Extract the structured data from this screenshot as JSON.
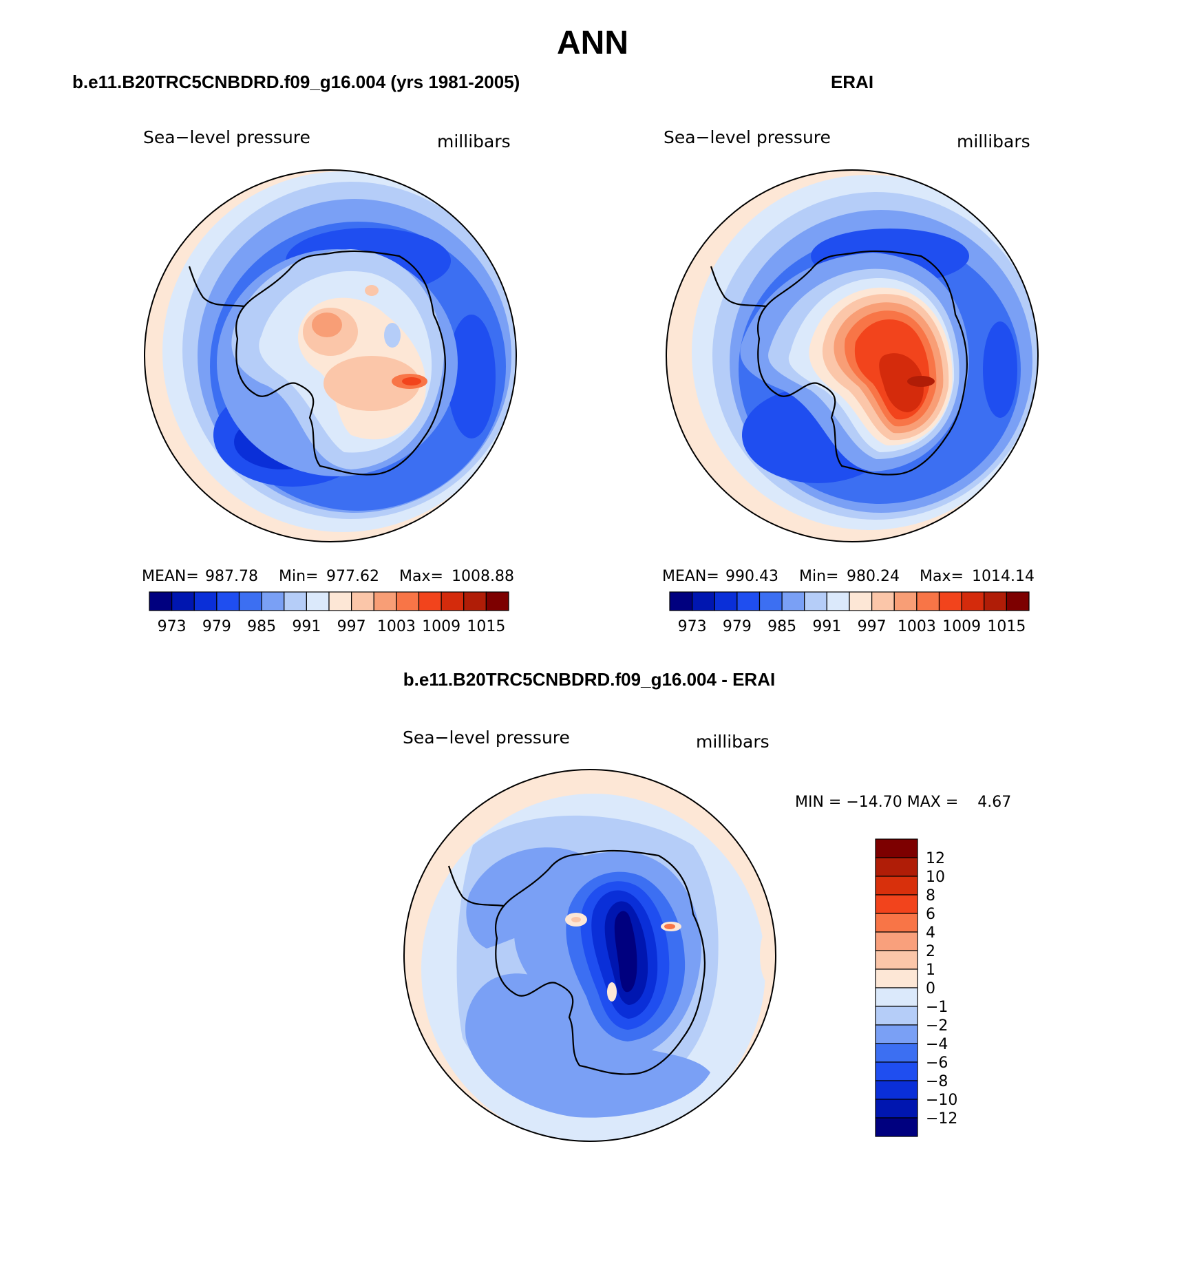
{
  "page_title": "ANN",
  "panels": [
    {
      "title": "b.e11.B20TRC5CNBDRD.f09_g16.004 (yrs 1981-2005)",
      "variable": "Sea−level pressure",
      "units": "millibars",
      "stats": {
        "mean_label": "MEAN=",
        "mean": "987.78",
        "min_label": "Min=",
        "min": "977.62",
        "max_label": "Max=",
        "max": "1008.88"
      }
    },
    {
      "title": "ERAI",
      "variable": "Sea−level pressure",
      "units": "millibars",
      "stats": {
        "mean_label": "MEAN=",
        "mean": "990.43",
        "min_label": "Min=",
        "min": "980.24",
        "max_label": "Max=",
        "max": "1014.14"
      }
    },
    {
      "title": "b.e11.B20TRC5CNBDRD.f09_g16.004 - ERAI",
      "variable": "Sea−level pressure",
      "units": "millibars",
      "minmax_text": "MIN = −14.70 MAX =    4.67"
    }
  ],
  "colorbar_abs": {
    "colors": [
      "#00007f",
      "#0016b0",
      "#0a2fd8",
      "#1f4ef0",
      "#3c6ff2",
      "#7aa0f5",
      "#b5cdf8",
      "#dbe9fb",
      "#fde7d6",
      "#fbc6a9",
      "#f89e76",
      "#f87547",
      "#f2441c",
      "#d42b0c",
      "#b01d07",
      "#7d0000"
    ],
    "tick_labels": [
      "973",
      "979",
      "985",
      "991",
      "997",
      "1003",
      "1009",
      "1015"
    ]
  },
  "colorbar_diff": {
    "colors_top_to_bottom": [
      "#7d0000",
      "#b01d07",
      "#d8300c",
      "#f2441c",
      "#f87547",
      "#f9a07c",
      "#fbc6a9",
      "#fde7d6",
      "#dbe9fb",
      "#b5cdf8",
      "#7aa0f5",
      "#3c6ff2",
      "#1f4ef0",
      "#0a2fd8",
      "#0016b0",
      "#00007f"
    ],
    "tick_labels": [
      "12",
      "10",
      "8",
      "6",
      "4",
      "2",
      "1",
      "0",
      "−1",
      "−2",
      "−4",
      "−6",
      "−8",
      "−10",
      "−12"
    ]
  },
  "palette": {
    "very_light_blue": "#dbe9fb",
    "light_blue": "#b5cdf8",
    "mid_blue": "#7aa0f5",
    "blue": "#3c6ff2",
    "deep_blue": "#1f4ef0",
    "navy": "#00007f",
    "peach": "#fde7d6",
    "light_orange": "#fbc6a9",
    "orange": "#f87547",
    "red_orange": "#f2441c",
    "dark_red": "#b01d07"
  }
}
